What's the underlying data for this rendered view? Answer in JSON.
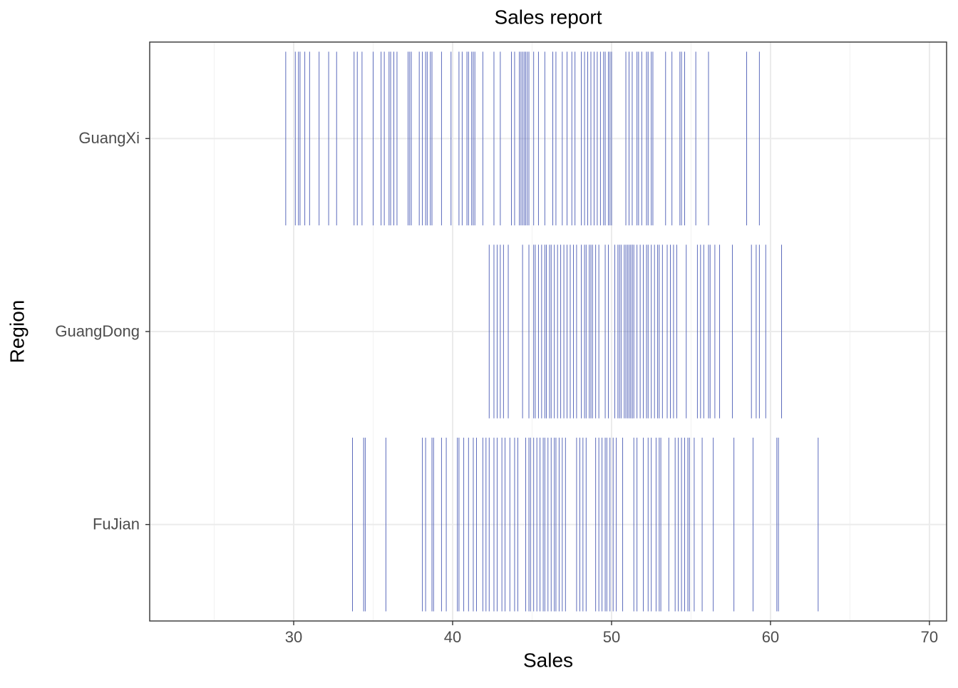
{
  "chart_data": {
    "type": "rug",
    "title": "Sales report",
    "x_label": "Sales",
    "y_label": "Region",
    "color": "#4a5bb5",
    "grid": true,
    "xlim": [
      20.94,
      71.08
    ],
    "xticks": [
      30,
      40,
      50,
      60,
      70
    ],
    "xminor": [
      25,
      35,
      45,
      55,
      65
    ],
    "categories": [
      "FuJian",
      "GuangDong",
      "GuangXi"
    ],
    "values": [
      [
        33.7,
        34.4,
        34.5,
        35.8,
        38.1,
        38.3,
        38.7,
        38.8,
        39.3,
        39.6,
        40.3,
        40.4,
        40.7,
        41.0,
        41.3,
        41.5,
        41.9,
        42.1,
        42.3,
        42.6,
        42.8,
        43.1,
        43.3,
        43.6,
        43.9,
        44.1,
        44.6,
        44.8,
        44.9,
        45.1,
        45.3,
        45.5,
        45.7,
        45.8,
        46.0,
        46.2,
        46.4,
        46.5,
        46.7,
        46.9,
        47.1,
        47.8,
        48.0,
        48.2,
        48.4,
        49.0,
        49.2,
        49.4,
        49.6,
        49.7,
        49.9,
        50.1,
        50.3,
        50.7,
        51.4,
        51.6,
        52.0,
        52.3,
        52.5,
        52.8,
        53.0,
        53.1,
        53.6,
        54.0,
        54.2,
        54.4,
        54.6,
        54.8,
        54.9,
        55.2,
        55.7,
        56.4,
        57.7,
        58.9,
        60.4,
        60.5,
        63.0
      ],
      [
        42.3,
        42.6,
        42.8,
        43.0,
        43.2,
        43.5,
        44.4,
        44.8,
        45.1,
        45.2,
        45.4,
        45.6,
        45.8,
        45.9,
        46.1,
        46.2,
        46.4,
        46.6,
        46.8,
        47.0,
        47.2,
        47.4,
        47.6,
        47.8,
        48.1,
        48.3,
        48.4,
        48.6,
        48.7,
        48.8,
        49.0,
        49.2,
        49.6,
        49.8,
        50.2,
        50.4,
        50.5,
        50.6,
        50.8,
        50.9,
        51.0,
        51.1,
        51.2,
        51.3,
        51.3,
        51.4,
        51.6,
        51.8,
        52.0,
        52.2,
        52.3,
        52.5,
        52.7,
        52.9,
        53.0,
        53.2,
        53.5,
        53.7,
        53.9,
        54.1,
        54.7,
        55.4,
        55.6,
        55.8,
        56.1,
        56.2,
        56.5,
        56.8,
        57.6,
        58.8,
        59.1,
        59.3,
        59.7,
        60.7
      ],
      [
        29.5,
        30.1,
        30.3,
        30.4,
        30.7,
        31.0,
        31.6,
        32.2,
        32.7,
        33.8,
        34.0,
        34.3,
        35.0,
        35.5,
        35.7,
        36.0,
        36.1,
        36.3,
        36.5,
        37.2,
        37.3,
        37.4,
        37.9,
        38.1,
        38.3,
        38.4,
        38.6,
        38.7,
        39.3,
        39.9,
        40.4,
        40.6,
        40.9,
        41.0,
        41.2,
        41.3,
        41.4,
        41.9,
        42.6,
        43.0,
        43.7,
        43.9,
        44.2,
        44.3,
        44.4,
        44.5,
        44.6,
        44.7,
        44.8,
        45.1,
        45.4,
        45.8,
        46.3,
        46.5,
        46.9,
        47.2,
        47.5,
        47.7,
        48.1,
        48.3,
        48.5,
        48.7,
        48.9,
        49.1,
        49.3,
        49.5,
        49.6,
        49.8,
        49.9,
        50.0,
        50.9,
        51.1,
        51.3,
        51.6,
        51.7,
        51.9,
        52.2,
        52.3,
        52.5,
        52.6,
        53.4,
        53.8,
        54.3,
        54.4,
        54.6,
        55.3,
        56.1,
        58.5,
        59.3
      ]
    ]
  }
}
